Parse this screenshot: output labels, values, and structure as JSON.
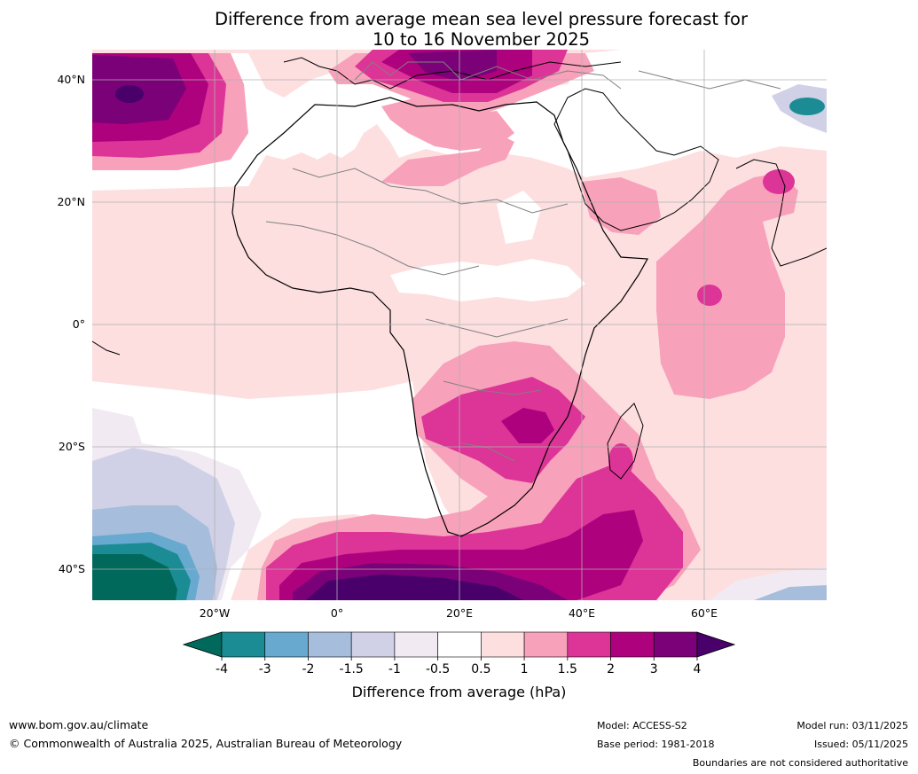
{
  "title": {
    "line1": "Difference from average mean sea level pressure forecast for",
    "line2": "10 to 16 November 2025"
  },
  "map": {
    "lat_labels": [
      "40°N",
      "20°N",
      "0°",
      "20°S",
      "40°S"
    ],
    "lon_labels": [
      "20°W",
      "0°",
      "20°E",
      "40°E",
      "60°E"
    ]
  },
  "colorbar": {
    "label": "Difference from average (hPa)",
    "ticks": [
      "-4",
      "-3",
      "-2",
      "-1.5",
      "-1",
      "-0.5",
      "0.5",
      "1",
      "1.5",
      "2",
      "3",
      "4"
    ],
    "colors": [
      "#00695c",
      "#1b8c94",
      "#67a9cf",
      "#a6bddb",
      "#d0d1e6",
      "#f1eaf2",
      "#ffffff",
      "#fddfe0",
      "#f8a1bb",
      "#dd3497",
      "#ae017e",
      "#7a0177",
      "#49006a"
    ]
  },
  "footer": {
    "url": "www.bom.gov.au/climate",
    "copyright": "© Commonwealth of Australia 2025, Australian Bureau of Meteorology",
    "model": "Model: ACCESS-S2",
    "base_period": "Base period: 1981-2018",
    "model_run": "Model run: 03/11/2025",
    "issued": "Issued: 05/11/2025",
    "disclaimer": "Boundaries are not considered authoritative"
  }
}
